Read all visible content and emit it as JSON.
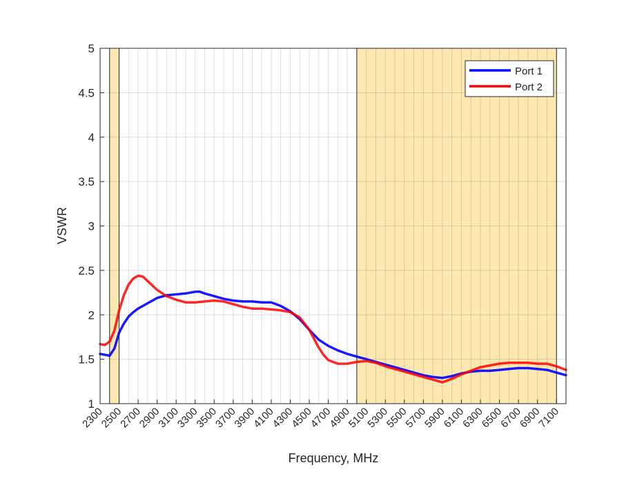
{
  "chart_data": {
    "type": "line",
    "title": "",
    "xlabel": "Frequency, MHz",
    "ylabel": "VSWR",
    "xlim": [
      2300,
      7200
    ],
    "ylim": [
      1,
      5
    ],
    "x_ticks": [
      2300,
      2500,
      2700,
      2900,
      3100,
      3300,
      3500,
      3700,
      3900,
      4100,
      4300,
      4500,
      4700,
      4900,
      5100,
      5300,
      5500,
      5700,
      5900,
      6100,
      6300,
      6500,
      6700,
      6900,
      7100
    ],
    "x_minor_step": 100,
    "y_ticks": [
      1,
      1.5,
      2,
      2.5,
      3,
      3.5,
      4,
      4.5,
      5
    ],
    "y_tick_labels": [
      "1",
      "1.5",
      "2",
      "2.5",
      "3",
      "3.5",
      "4",
      "4.5",
      "5"
    ],
    "grid": true,
    "legend_position": "top-right",
    "shaded_bands": [
      {
        "x0": 2400,
        "x1": 2500,
        "color": "#fce8b0"
      },
      {
        "x0": 5000,
        "x1": 7100,
        "color": "#fce8b0"
      }
    ],
    "series": [
      {
        "name": "Port 1",
        "color": "#0000ff",
        "x": [
          2300,
          2350,
          2400,
          2450,
          2500,
          2550,
          2600,
          2650,
          2700,
          2750,
          2800,
          2900,
          3000,
          3100,
          3200,
          3300,
          3350,
          3400,
          3500,
          3600,
          3700,
          3800,
          3900,
          4000,
          4100,
          4200,
          4300,
          4400,
          4500,
          4600,
          4700,
          4800,
          4900,
          5000,
          5100,
          5200,
          5300,
          5400,
          5500,
          5600,
          5700,
          5800,
          5900,
          6000,
          6100,
          6200,
          6300,
          6400,
          6500,
          6600,
          6700,
          6800,
          6900,
          7000,
          7100,
          7200
        ],
        "y": [
          1.56,
          1.55,
          1.54,
          1.62,
          1.8,
          1.9,
          1.98,
          2.03,
          2.07,
          2.1,
          2.13,
          2.19,
          2.22,
          2.23,
          2.24,
          2.26,
          2.26,
          2.24,
          2.21,
          2.18,
          2.16,
          2.15,
          2.15,
          2.14,
          2.14,
          2.1,
          2.04,
          1.95,
          1.83,
          1.72,
          1.65,
          1.6,
          1.56,
          1.53,
          1.5,
          1.47,
          1.44,
          1.41,
          1.38,
          1.35,
          1.32,
          1.3,
          1.29,
          1.31,
          1.34,
          1.36,
          1.37,
          1.37,
          1.38,
          1.39,
          1.4,
          1.4,
          1.39,
          1.38,
          1.35,
          1.32
        ]
      },
      {
        "name": "Port 2",
        "color": "#ff0000",
        "x": [
          2300,
          2350,
          2400,
          2450,
          2500,
          2550,
          2600,
          2650,
          2700,
          2750,
          2800,
          2900,
          3000,
          3100,
          3200,
          3300,
          3400,
          3500,
          3600,
          3700,
          3800,
          3900,
          4000,
          4100,
          4200,
          4300,
          4400,
          4500,
          4600,
          4650,
          4700,
          4800,
          4900,
          5000,
          5100,
          5200,
          5300,
          5400,
          5500,
          5600,
          5700,
          5800,
          5900,
          6000,
          6100,
          6200,
          6300,
          6400,
          6500,
          6600,
          6700,
          6800,
          6900,
          7000,
          7100,
          7200
        ],
        "y": [
          1.67,
          1.66,
          1.7,
          1.82,
          2.05,
          2.22,
          2.34,
          2.41,
          2.44,
          2.43,
          2.38,
          2.28,
          2.21,
          2.17,
          2.14,
          2.14,
          2.15,
          2.16,
          2.15,
          2.12,
          2.09,
          2.07,
          2.07,
          2.06,
          2.05,
          2.03,
          1.97,
          1.83,
          1.63,
          1.55,
          1.49,
          1.45,
          1.45,
          1.47,
          1.48,
          1.46,
          1.42,
          1.39,
          1.36,
          1.33,
          1.3,
          1.27,
          1.24,
          1.28,
          1.33,
          1.37,
          1.41,
          1.43,
          1.45,
          1.46,
          1.46,
          1.46,
          1.45,
          1.45,
          1.42,
          1.38
        ]
      }
    ]
  }
}
